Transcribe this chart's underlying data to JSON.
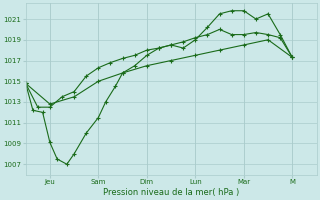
{
  "xlabel": "Pression niveau de la mer( hPa )",
  "bg_color": "#cce8e8",
  "grid_color": "#aacccc",
  "line_color": "#1a6b1a",
  "ylim": [
    1006,
    1022.5
  ],
  "yticks": [
    1007,
    1009,
    1011,
    1013,
    1015,
    1017,
    1019,
    1021
  ],
  "day_labels": [
    "Jeu",
    "Sam",
    "Dim",
    "Lun",
    "Mar",
    "M"
  ],
  "day_x": [
    1,
    3,
    5,
    7,
    9,
    11
  ],
  "xlim": [
    0,
    12
  ],
  "line1_x": [
    0,
    0.3,
    0.7,
    1.0,
    1.3,
    1.7,
    2.0,
    2.5,
    3.0,
    3.3,
    3.7,
    4.0,
    4.5,
    5.0,
    5.5,
    6.0,
    6.5,
    7.0,
    7.5,
    8.0,
    8.5,
    9.0,
    9.5,
    10.0,
    10.5,
    11.0
  ],
  "line1_y": [
    1014.8,
    1012.2,
    1012.0,
    1009.1,
    1007.5,
    1007.0,
    1008.0,
    1010.0,
    1011.5,
    1013.0,
    1014.5,
    1015.8,
    1016.5,
    1017.5,
    1018.2,
    1018.5,
    1018.2,
    1019.0,
    1020.2,
    1021.5,
    1021.8,
    1021.8,
    1021.0,
    1021.5,
    1019.5,
    1017.3
  ],
  "line2_x": [
    0,
    0.5,
    1.0,
    1.5,
    2.0,
    2.5,
    3.0,
    3.5,
    4.0,
    4.5,
    5.0,
    5.5,
    6.0,
    6.5,
    7.0,
    7.5,
    8.0,
    8.5,
    9.0,
    9.5,
    10.0,
    10.5,
    11.0
  ],
  "line2_y": [
    1014.8,
    1012.5,
    1012.5,
    1013.5,
    1014.0,
    1015.5,
    1016.3,
    1016.8,
    1017.2,
    1017.5,
    1018.0,
    1018.2,
    1018.5,
    1018.8,
    1019.2,
    1019.5,
    1020.0,
    1019.5,
    1019.5,
    1019.7,
    1019.5,
    1019.2,
    1017.3
  ],
  "line3_x": [
    0,
    1.0,
    2.0,
    3.0,
    4.0,
    5.0,
    6.0,
    7.0,
    8.0,
    9.0,
    10.0,
    11.0
  ],
  "line3_y": [
    1014.8,
    1012.8,
    1013.5,
    1015.0,
    1015.8,
    1016.5,
    1017.0,
    1017.5,
    1018.0,
    1018.5,
    1019.0,
    1017.3
  ]
}
